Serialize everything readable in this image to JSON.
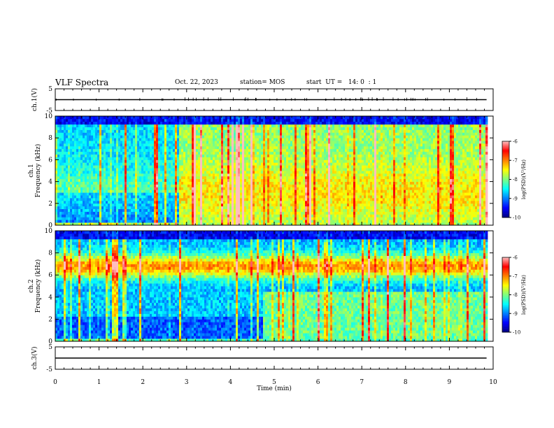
{
  "header": {
    "title": "VLF Spectra",
    "date": "Oct. 22, 2023",
    "station": "station= MOS",
    "start": "start  UT =   14: 0  : 1"
  },
  "colors": {
    "axis": "#000000",
    "colormap": [
      "#00007f",
      "#0000ff",
      "#007fff",
      "#00ffff",
      "#7fff7f",
      "#ffff00",
      "#ff7f00",
      "#ff0000",
      "#ffc0c0"
    ]
  },
  "chart_data": [
    {
      "type": "line",
      "panel": "ch1-waveform",
      "ylabel": "ch.1(V)",
      "ylim": [
        -5,
        5
      ],
      "yticks": [
        5,
        -5
      ],
      "xlim": [
        0,
        10
      ],
      "series": [
        {
          "x": [
            0,
            9.85
          ],
          "y": [
            0,
            0
          ]
        }
      ]
    },
    {
      "type": "heatmap",
      "panel": "ch1-spectrogram",
      "ylabel": "ch.1\nFrequency (kHz)",
      "ylim": [
        0,
        10
      ],
      "yticks": [
        0,
        2,
        4,
        6,
        8,
        10
      ],
      "xlim": [
        0,
        10
      ],
      "data_xmax": 9.85,
      "colorbar": {
        "label": "log(PSD)(V²/Hz)",
        "range": [
          -10,
          -6
        ],
        "ticks": [
          -6,
          -7,
          -8,
          -9,
          -10
        ]
      }
    },
    {
      "type": "heatmap",
      "panel": "ch2-spectrogram",
      "ylabel": "ch.2\nFrequency (kHz)",
      "ylim": [
        0,
        10
      ],
      "yticks": [
        0,
        2,
        4,
        6,
        8,
        10
      ],
      "xlim": [
        0,
        10
      ],
      "data_xmax": 9.85,
      "colorbar": {
        "label": "log(PSD)(V²/Hz)",
        "range": [
          -10,
          -6
        ],
        "ticks": [
          -6,
          -7,
          -8,
          -9,
          -10
        ]
      }
    },
    {
      "type": "line",
      "panel": "ch3-waveform",
      "ylabel": "ch.3(V)",
      "ylim": [
        -5,
        5
      ],
      "yticks": [
        5,
        -5
      ],
      "xlim": [
        0,
        10
      ],
      "series": [
        {
          "x": [
            0,
            9.85
          ],
          "y": [
            0,
            0
          ]
        }
      ]
    }
  ],
  "xaxis": {
    "label": "Time (min)",
    "ticks": [
      0,
      1,
      2,
      3,
      4,
      5,
      6,
      7,
      8,
      9,
      10
    ]
  }
}
